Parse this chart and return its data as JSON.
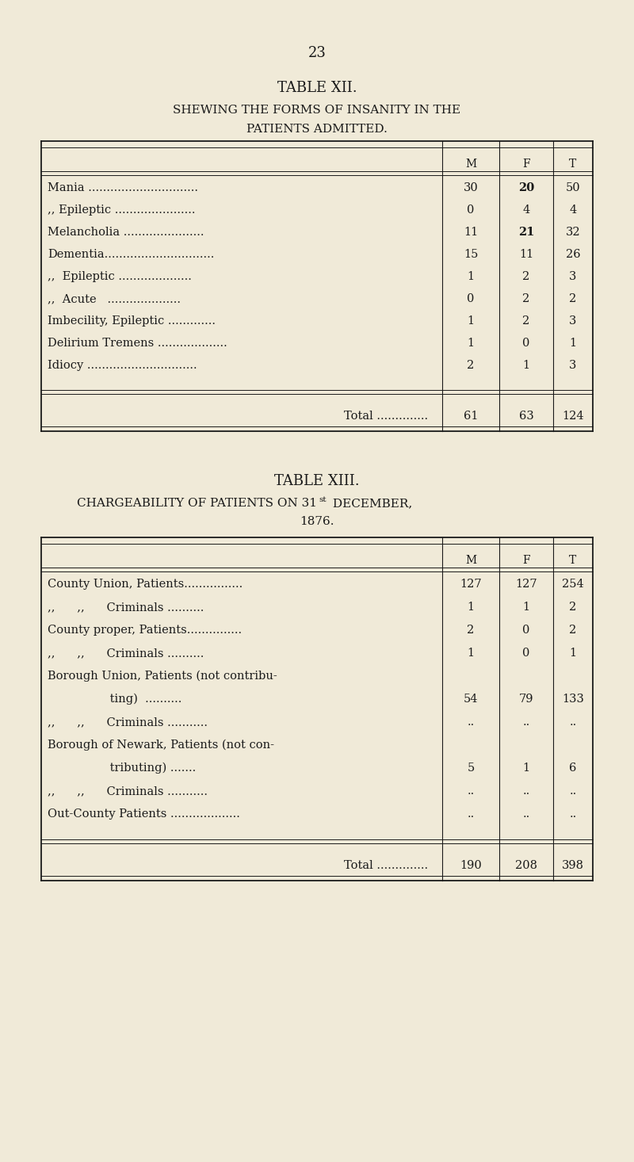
{
  "bg_color": "#f0ead8",
  "text_color": "#1a1a1a",
  "page_number": "23",
  "table12_title": "TABLE XII.",
  "table12_sub1": "SHEWING THE FORMS OF INSANITY IN THE",
  "table12_sub2": "PATIENTS ADMITTED.",
  "table12_rows": [
    [
      "Mania ..............................",
      "30",
      "20",
      "50"
    ],
    [
      ",, Epileptic ......................",
      "0",
      "4",
      "4"
    ],
    [
      "Melancholia ......................",
      "11",
      "21",
      "32"
    ],
    [
      "Dementia..............................",
      "15",
      "11",
      "26"
    ],
    [
      ",,  Epileptic ....................",
      "1",
      "2",
      "3"
    ],
    [
      ",,  Acute   ....................",
      "0",
      "2",
      "2"
    ],
    [
      "Imbecility, Epileptic .............",
      "1",
      "2",
      "3"
    ],
    [
      "Delirium Tremens ...................",
      "1",
      "0",
      "1"
    ],
    [
      "Idiocy ..............................",
      "2",
      "1",
      "3"
    ]
  ],
  "table12_total": [
    "61",
    "63",
    "124"
  ],
  "table13_title": "TABLE XIII.",
  "table13_sub1": "CHARGEABILITY OF PATIENTS ON 31st DECEMBER,",
  "table13_sub2": "1876.",
  "table13_rows": [
    [
      "County Union, Patients................",
      "127",
      "127",
      "254"
    ],
    [
      ",,      ,,      Criminals ..........",
      "1",
      "1",
      "2"
    ],
    [
      "County proper, Patients...............",
      "2",
      "0",
      "2"
    ],
    [
      ",,      ,,      Criminals ..........",
      "1",
      "0",
      "1"
    ],
    [
      "Borough Union, Patients (not contribu-",
      "",
      "",
      ""
    ],
    [
      "                 ting)  ..........",
      "54",
      "79",
      "133"
    ],
    [
      ",,      ,,      Criminals ...........",
      "..",
      "..",
      ".."
    ],
    [
      "Borough of Newark, Patients (not con-",
      "",
      "",
      ""
    ],
    [
      "                 tributing) .......",
      "5",
      "1",
      "6"
    ],
    [
      ",,      ,,      Criminals ...........",
      "..",
      "..",
      ".."
    ],
    [
      "Out-County Patients ...................",
      "..",
      "..",
      ".."
    ]
  ],
  "table13_total": [
    "190",
    "208",
    "398"
  ]
}
